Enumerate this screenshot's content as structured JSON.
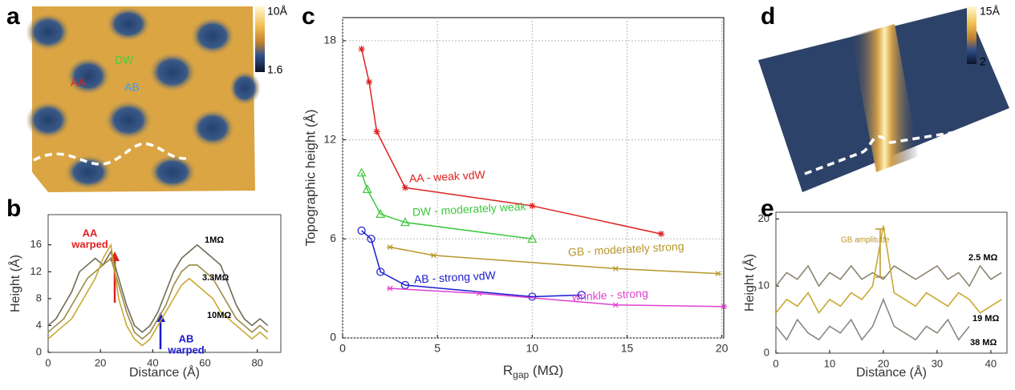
{
  "chart_data": [
    {
      "type": "line",
      "panel": "b",
      "x_label": "Distance (Å)",
      "y_label": "Height (Å)",
      "x": [
        0,
        3,
        6,
        9,
        12,
        15,
        18,
        21,
        24,
        27,
        30,
        33,
        36,
        39,
        42,
        45,
        48,
        51,
        54,
        57,
        60,
        63,
        66,
        69,
        72,
        75,
        78,
        81,
        84
      ],
      "series": [
        {
          "name": "1MΩ",
          "color": "#6f6b58",
          "values": [
            4,
            5,
            7,
            9,
            12,
            13,
            14,
            13,
            15,
            11,
            7,
            4,
            3,
            4,
            6,
            9,
            12,
            14,
            15,
            16,
            15,
            14,
            13,
            10,
            7,
            5,
            4,
            5,
            4
          ]
        },
        {
          "name": "3.3MΩ",
          "color": "#9a8a45",
          "values": [
            3,
            4,
            5,
            7,
            9,
            11,
            12,
            13,
            14,
            10,
            6,
            3,
            2,
            3,
            5,
            7,
            10,
            12,
            13,
            13,
            12,
            11,
            9,
            7,
            5,
            4,
            3,
            4,
            3
          ]
        },
        {
          "name": "10MΩ",
          "color": "#c9a830",
          "values": [
            2,
            3,
            4,
            5,
            7,
            9,
            11,
            14,
            16,
            8,
            4,
            2,
            1,
            2,
            4,
            6,
            8,
            10,
            11,
            10,
            9,
            8,
            6,
            5,
            4,
            3,
            2,
            3,
            2
          ]
        }
      ],
      "annotations": [
        [
          "AA",
          "warped"
        ],
        [
          "AB",
          "warped"
        ]
      ],
      "xlim": [
        0,
        89
      ],
      "ylim": [
        0,
        20.5
      ],
      "xticks": [
        0,
        20,
        40,
        60,
        80
      ],
      "yticks": [
        0,
        4,
        8,
        12,
        16
      ],
      "grid": false
    },
    {
      "type": "line",
      "panel": "c",
      "x_label": [
        "R",
        "gap",
        " (MΩ)"
      ],
      "y_label": "Topographic height (Å)",
      "series": [
        {
          "name": "AA - weak vdW",
          "color": "#e02020",
          "marker": "star",
          "x": [
            1.0,
            1.4,
            1.8,
            3.3,
            10,
            16.8
          ],
          "values": [
            17.5,
            15.5,
            12.5,
            9.1,
            8.0,
            6.3
          ]
        },
        {
          "name": "DW - moderately weak",
          "color": "#3cc83c",
          "marker": "triangle",
          "x": [
            1.0,
            1.3,
            2.0,
            3.3,
            10
          ],
          "values": [
            10.0,
            9.0,
            7.5,
            7.0,
            6.0
          ]
        },
        {
          "name": "GB - moderately strong",
          "color": "#b8962a",
          "marker": "cross",
          "x": [
            2.5,
            4.8,
            14.4,
            19.8
          ],
          "values": [
            5.5,
            5.0,
            4.2,
            3.9
          ]
        },
        {
          "name": "AB - strong vdW",
          "color": "#1a1ad0",
          "marker": "circle",
          "x": [
            1.0,
            1.5,
            2.0,
            3.3,
            10,
            12.6
          ],
          "values": [
            6.5,
            6.0,
            4.0,
            3.2,
            2.5,
            2.6
          ]
        },
        {
          "name": "wrinkle - strong",
          "color": "#e040d0",
          "marker": "cross",
          "x": [
            2.5,
            7.2,
            14.4,
            20.1
          ],
          "values": [
            3.0,
            2.7,
            2.0,
            1.9
          ]
        }
      ],
      "xlim": [
        0,
        20.1
      ],
      "ylim": [
        0,
        19.4
      ],
      "xticks": [
        0,
        5,
        10,
        15,
        20
      ],
      "yticks": [
        0,
        6,
        12,
        18
      ],
      "grid": true
    },
    {
      "type": "line",
      "panel": "e",
      "x_label": "Distance (Å)",
      "y_label": "Height (Å)",
      "x": [
        0,
        2,
        4,
        6,
        8,
        10,
        12,
        14,
        16,
        18,
        20,
        22,
        24,
        26,
        28,
        30,
        32,
        34,
        36,
        38,
        40,
        42
      ],
      "series": [
        {
          "name": "2.5 MΩ",
          "color": "#8c8470",
          "values": [
            10,
            12,
            11,
            13,
            10,
            12,
            11,
            13,
            11,
            12,
            11,
            13,
            12,
            11,
            12,
            13,
            11,
            12,
            10,
            13,
            11,
            12
          ]
        },
        {
          "name": "19 MΩ",
          "color": "#c9a830",
          "values": [
            6,
            8,
            7,
            9,
            6,
            8,
            7,
            9,
            8,
            10,
            19,
            9,
            8,
            7,
            9,
            8,
            7,
            9,
            8,
            6,
            7,
            8
          ]
        },
        {
          "name": "38 MΩ",
          "color": "#8a8a80",
          "values": [
            4,
            2,
            5,
            3,
            2,
            4,
            3,
            5,
            2,
            4,
            8,
            4,
            3,
            2,
            4,
            3,
            5,
            2,
            4,
            null,
            null,
            null
          ]
        }
      ],
      "annotations": [
        "GB amplitude"
      ],
      "xlim": [
        0,
        43
      ],
      "ylim": [
        0,
        21
      ],
      "xticks": [
        0,
        10,
        20,
        30,
        40
      ],
      "yticks": [
        0,
        10,
        20
      ],
      "grid": false
    }
  ],
  "panel_a": {
    "letter": "a",
    "labels": [
      "AA",
      "DW",
      "AB"
    ],
    "colorbar": [
      "10Å",
      "1.6"
    ]
  },
  "panel_d": {
    "letter": "d",
    "colorbar": [
      "15Å",
      "2"
    ]
  }
}
